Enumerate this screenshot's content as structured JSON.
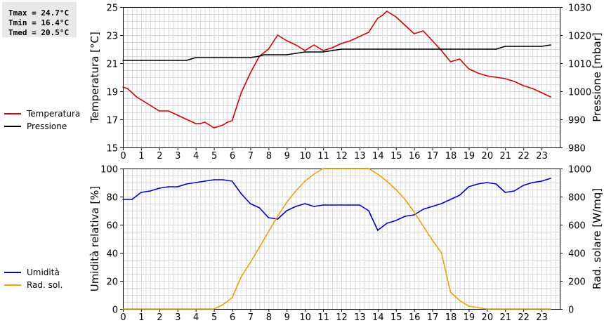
{
  "stats": {
    "tmax": "Tmax = 24.7°C",
    "tmin": "Tmin = 16.4°C",
    "tmed": "Tmed = 20.5°C"
  },
  "colors": {
    "temperature": "#d40000",
    "pressure": "#000000",
    "humidity": "#0000cc",
    "radiation": "#f0a000",
    "grid": "#d8d8d8"
  },
  "chart_data": [
    {
      "type": "line",
      "x_ticks": [
        "0",
        "1",
        "2",
        "3",
        "4",
        "5",
        "6",
        "7",
        "8",
        "9",
        "10",
        "11",
        "12",
        "13",
        "14",
        "15",
        "16",
        "17",
        "18",
        "19",
        "20",
        "21",
        "22",
        "23"
      ],
      "xlim": [
        0,
        24
      ],
      "ylabel_left": "Temperatura [°C]",
      "ylabel_right": "Pressione [mbar]",
      "y_ticks_left": [
        "15",
        "17",
        "19",
        "21",
        "23",
        "25"
      ],
      "y_ticks_right": [
        "980",
        "990",
        "1000",
        "1010",
        "1020",
        "1030"
      ],
      "ylim_left": [
        15,
        25
      ],
      "ylim_right": [
        980,
        1030
      ],
      "grid": true,
      "legend_position": "left",
      "series": [
        {
          "name": "Temperatura",
          "axis": "left",
          "x": [
            0,
            0.25,
            0.5,
            0.75,
            1,
            1.5,
            2,
            2.5,
            3,
            3.5,
            4,
            4.25,
            4.5,
            4.75,
            5,
            5.25,
            5.5,
            5.75,
            6,
            6.5,
            7,
            7.5,
            8,
            8.25,
            8.5,
            8.75,
            9,
            9.5,
            10,
            10.25,
            10.5,
            10.75,
            11,
            11.5,
            12,
            12.5,
            13,
            13.5,
            14,
            14.25,
            14.5,
            14.75,
            15,
            15.5,
            16,
            16.5,
            17,
            17.5,
            18,
            18.5,
            19,
            19.5,
            20,
            20.5,
            21,
            21.5,
            22,
            22.5,
            23,
            23.5
          ],
          "y": [
            19.3,
            19.2,
            18.9,
            18.6,
            18.4,
            18.0,
            17.6,
            17.6,
            17.3,
            17.0,
            16.7,
            16.7,
            16.8,
            16.6,
            16.4,
            16.5,
            16.6,
            16.8,
            16.9,
            18.9,
            20.3,
            21.5,
            22.0,
            22.5,
            23.0,
            22.8,
            22.6,
            22.3,
            21.9,
            22.1,
            22.3,
            22.1,
            21.9,
            22.1,
            22.4,
            22.6,
            22.9,
            23.2,
            24.2,
            24.4,
            24.7,
            24.5,
            24.3,
            23.7,
            23.1,
            23.3,
            22.6,
            21.9,
            21.1,
            21.3,
            20.6,
            20.3,
            20.1,
            20.0,
            19.9,
            19.7,
            19.4,
            19.2,
            18.9,
            18.6
          ]
        },
        {
          "name": "Pressione",
          "axis": "right",
          "x": [
            0,
            1,
            2,
            3,
            3.5,
            3.75,
            4,
            5,
            6,
            6.5,
            7,
            7.5,
            7.75,
            8,
            9,
            9.5,
            10,
            11,
            11.5,
            12,
            13,
            14,
            15,
            16,
            17,
            18,
            19,
            20,
            20.5,
            21,
            21.5,
            22,
            22.5,
            23,
            23.5
          ],
          "y": [
            1011,
            1011,
            1011,
            1011,
            1011,
            1011.5,
            1012,
            1012,
            1012,
            1012,
            1012,
            1012.5,
            1013,
            1013,
            1013,
            1013.5,
            1014,
            1014,
            1014.5,
            1015,
            1015,
            1015,
            1015,
            1015,
            1015,
            1015,
            1015,
            1015,
            1015,
            1016,
            1016,
            1016,
            1016,
            1016,
            1016.5
          ]
        }
      ]
    },
    {
      "type": "line",
      "x_ticks": [
        "0",
        "1",
        "2",
        "3",
        "4",
        "5",
        "6",
        "7",
        "8",
        "9",
        "10",
        "11",
        "12",
        "13",
        "14",
        "15",
        "16",
        "17",
        "18",
        "19",
        "20",
        "21",
        "22",
        "23"
      ],
      "xlim": [
        0,
        24
      ],
      "ylabel_left": "Umidità relativa [%]",
      "ylabel_right": "Rad. solare [W/mq]",
      "y_ticks_left": [
        "0",
        "20",
        "40",
        "60",
        "80",
        "100"
      ],
      "y_ticks_right": [
        "0",
        "200",
        "400",
        "600",
        "800",
        "1000"
      ],
      "ylim_left": [
        0,
        100
      ],
      "ylim_right": [
        0,
        1000
      ],
      "grid": true,
      "legend_position": "left",
      "series": [
        {
          "name": "Umidità",
          "axis": "left",
          "x": [
            0,
            0.5,
            1,
            1.5,
            2,
            2.5,
            3,
            3.5,
            4,
            4.5,
            5,
            5.5,
            6,
            6.5,
            7,
            7.5,
            8,
            8.5,
            9,
            9.5,
            10,
            10.5,
            11,
            11.5,
            12,
            12.5,
            13,
            13.5,
            14,
            14.5,
            15,
            15.5,
            16,
            16.5,
            17,
            17.5,
            18,
            18.5,
            19,
            19.5,
            20,
            20.5,
            21,
            21.5,
            22,
            22.5,
            23,
            23.5
          ],
          "y": [
            78,
            78,
            83,
            84,
            86,
            87,
            87,
            89,
            90,
            91,
            92,
            92,
            91,
            82,
            75,
            72,
            65,
            64,
            70,
            73,
            75,
            73,
            74,
            74,
            74,
            74,
            74,
            70,
            56,
            61,
            63,
            66,
            67,
            71,
            73,
            75,
            78,
            81,
            87,
            89,
            90,
            89,
            83,
            84,
            88,
            90,
            91,
            93
          ]
        },
        {
          "name": "Rad. sol.",
          "axis": "right",
          "x": [
            0,
            1,
            2,
            3,
            4,
            5,
            5.5,
            6,
            6.5,
            7,
            7.5,
            8,
            8.5,
            9,
            9.5,
            10,
            10.5,
            11,
            11.5,
            12,
            12.5,
            13,
            13.5,
            14,
            14.5,
            15,
            15.5,
            16,
            16.5,
            17,
            17.5,
            18,
            18.5,
            19,
            19.5,
            20,
            21,
            22,
            23,
            23.5
          ],
          "y": [
            0,
            0,
            0,
            0,
            0,
            0,
            30,
            80,
            230,
            330,
            440,
            550,
            660,
            760,
            840,
            910,
            960,
            1000,
            1000,
            1000,
            1000,
            1000,
            1000,
            960,
            910,
            850,
            780,
            690,
            590,
            490,
            400,
            120,
            60,
            20,
            10,
            0,
            0,
            0,
            0,
            0
          ]
        }
      ]
    }
  ]
}
